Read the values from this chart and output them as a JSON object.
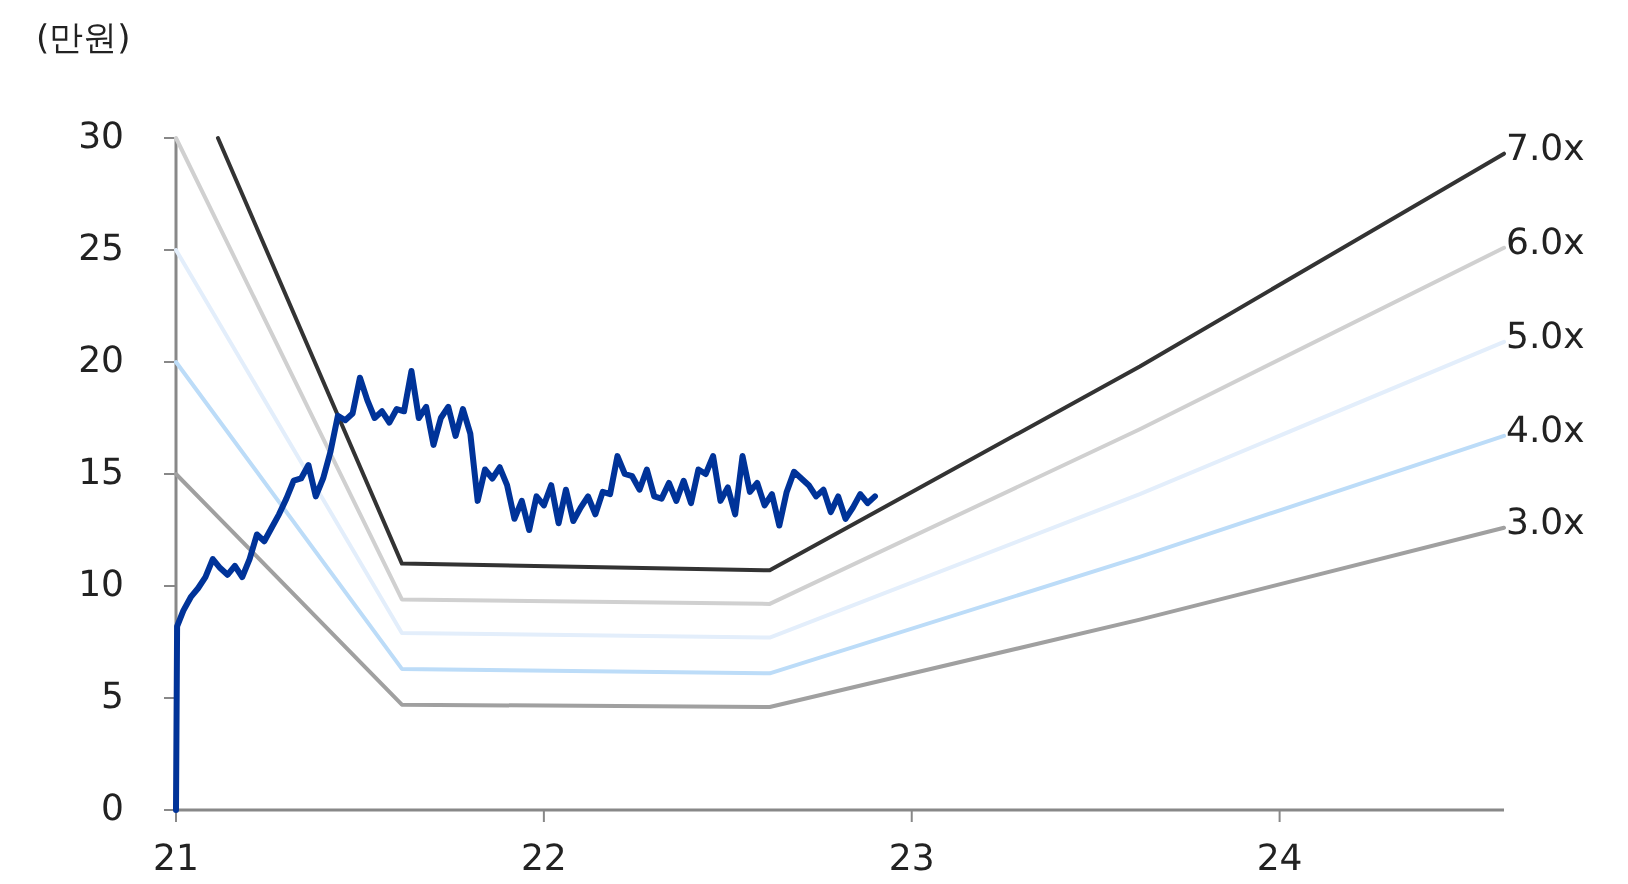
{
  "chart_data": {
    "type": "line",
    "ylabel": "(만원)",
    "xlim": [
      21,
      24.61
    ],
    "ylim": [
      0,
      30
    ],
    "xticks": [
      21,
      22,
      23,
      24
    ],
    "yticks": [
      0,
      5,
      10,
      15,
      20,
      25,
      30
    ],
    "grid": false,
    "legend": false,
    "line_style": "solid",
    "series": [
      {
        "name": "7.0x",
        "color": "#333333",
        "x": [
          21.114,
          21.614,
          22.614,
          23.62,
          24.61
        ],
        "values": [
          30,
          11.0,
          10.7,
          19.8,
          29.3
        ]
      },
      {
        "name": "6.0x",
        "color": "#d0d0d0",
        "x": [
          21,
          21.614,
          22.614,
          23.62,
          24.61
        ],
        "values": [
          30,
          9.4,
          9.2,
          17.0,
          25.1
        ]
      },
      {
        "name": "5.0x",
        "color": "#e3eefb",
        "x": [
          21,
          21.614,
          22.614,
          23.62,
          24.61
        ],
        "values": [
          25,
          7.9,
          7.7,
          14.1,
          20.9
        ]
      },
      {
        "name": "4.0x",
        "color": "#bcdcf8",
        "x": [
          21,
          21.614,
          22.614,
          23.62,
          24.61
        ],
        "values": [
          20,
          6.3,
          6.1,
          11.3,
          16.7
        ]
      },
      {
        "name": "3.0x",
        "color": "#a0a0a0",
        "x": [
          21,
          21.614,
          22.614,
          23.62,
          24.61
        ],
        "values": [
          15,
          4.7,
          4.6,
          8.5,
          12.6
        ]
      },
      {
        "color": "#003399",
        "x": [
          21.0,
          21.003,
          21.02,
          21.04,
          21.06,
          21.08,
          21.1,
          21.12,
          21.14,
          21.16,
          21.18,
          21.2,
          21.22,
          21.24,
          21.26,
          21.28,
          21.3,
          21.32,
          21.34,
          21.36,
          21.38,
          21.4,
          21.42,
          21.44,
          21.46,
          21.48,
          21.5,
          21.52,
          21.54,
          21.56,
          21.58,
          21.6,
          21.62,
          21.64,
          21.66,
          21.68,
          21.7,
          21.72,
          21.74,
          21.76,
          21.78,
          21.8,
          21.82,
          21.84,
          21.86,
          21.88,
          21.9,
          21.92,
          21.94,
          21.96,
          21.98,
          22.0,
          22.02,
          22.04,
          22.06,
          22.08,
          22.1,
          22.12,
          22.14,
          22.16,
          22.18,
          22.2,
          22.22,
          22.24,
          22.26,
          22.28,
          22.3,
          22.32,
          22.34,
          22.36,
          22.38,
          22.4,
          22.42,
          22.44,
          22.46,
          22.48,
          22.5,
          22.52,
          22.54,
          22.56,
          22.58,
          22.6,
          22.62,
          22.64,
          22.66,
          22.68,
          22.7,
          22.72,
          22.74,
          22.76,
          22.78,
          22.8,
          22.82,
          22.84,
          22.86,
          22.88,
          22.9
        ],
        "values": [
          0,
          8.2,
          8.9,
          9.5,
          9.9,
          10.4,
          11.2,
          10.8,
          10.5,
          10.9,
          10.4,
          11.2,
          12.3,
          12.0,
          12.6,
          13.2,
          13.9,
          14.7,
          14.8,
          15.4,
          14.0,
          14.8,
          16.0,
          17.6,
          17.4,
          17.7,
          19.3,
          18.3,
          17.5,
          17.8,
          17.3,
          17.9,
          17.8,
          19.6,
          17.5,
          18.0,
          16.3,
          17.5,
          18.0,
          16.7,
          17.9,
          16.8,
          13.8,
          15.2,
          14.8,
          15.3,
          14.5,
          13.0,
          13.8,
          12.5,
          14.0,
          13.6,
          14.5,
          12.8,
          14.3,
          12.9,
          13.5,
          14.0,
          13.2,
          14.2,
          14.1,
          15.8,
          15.0,
          14.9,
          14.3,
          15.2,
          14.0,
          13.9,
          14.6,
          13.8,
          14.7,
          13.7,
          15.2,
          15.0,
          15.8,
          13.8,
          14.4,
          13.2,
          15.8,
          14.2,
          14.6,
          13.6,
          14.1,
          12.7,
          14.2,
          15.1,
          14.8,
          14.5,
          14.0,
          14.3,
          13.3,
          14.0,
          13.0,
          13.5,
          14.1,
          13.7,
          14.0
        ]
      }
    ]
  }
}
